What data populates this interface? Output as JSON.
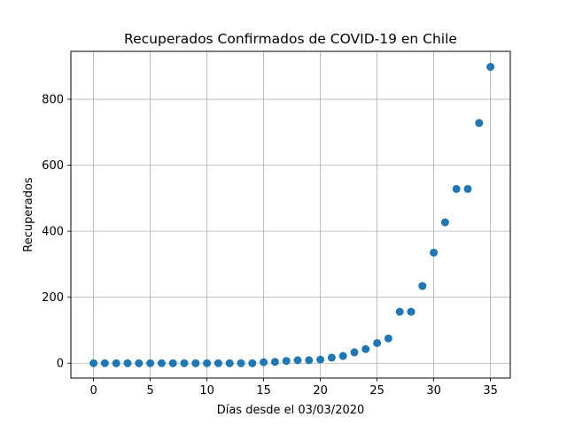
{
  "chart_data": {
    "type": "scatter",
    "title": "Recuperados Confirmados de COVID-19 en Chile",
    "xlabel": "Días desde el 03/03/2020",
    "ylabel": "Recuperados",
    "xlim": [
      -2,
      36.75
    ],
    "ylim": [
      -45,
      945
    ],
    "xticks": [
      0,
      5,
      10,
      15,
      20,
      25,
      30,
      35
    ],
    "yticks": [
      0,
      200,
      400,
      600,
      800
    ],
    "grid": true,
    "marker_color": "#1f77b4",
    "x": [
      0,
      1,
      2,
      3,
      4,
      5,
      6,
      7,
      8,
      9,
      10,
      11,
      12,
      13,
      14,
      15,
      16,
      17,
      18,
      19,
      20,
      21,
      22,
      23,
      24,
      25,
      26,
      27,
      28,
      29,
      30,
      31,
      32,
      33,
      34,
      35
    ],
    "y": [
      0,
      0,
      0,
      0,
      0,
      0,
      0,
      0,
      0,
      0,
      0,
      0,
      0,
      0,
      0,
      3,
      4,
      7,
      9,
      9,
      11,
      17,
      22,
      33,
      43,
      61,
      75,
      156,
      156,
      234,
      335,
      427,
      528,
      528,
      728,
      898
    ]
  }
}
